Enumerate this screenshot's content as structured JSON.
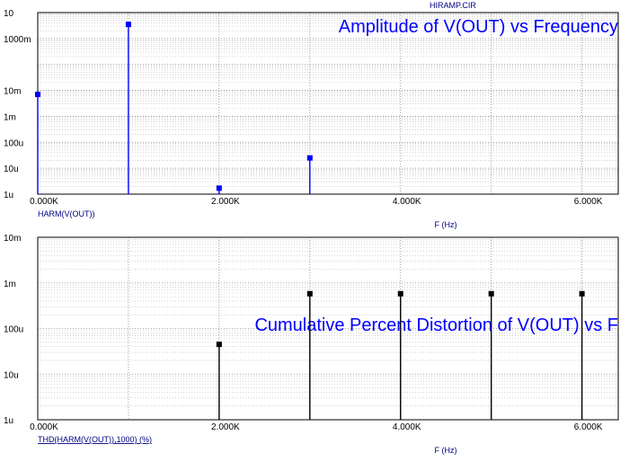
{
  "header": {
    "file_title": "HIRAMP.CIR"
  },
  "colors": {
    "series_top": "#0000ff",
    "series_bottom": "#000000",
    "grid": "#808080",
    "annotation": "#0000ff",
    "sublabel": "#000080"
  },
  "chart_data": [
    {
      "type": "stem",
      "title": "Amplitude of V(OUT) vs Frequency",
      "trace_label": "HARM(V(OUT))",
      "xlabel": "F (Hz)",
      "ylabel": "",
      "yscale": "log",
      "xlim": [
        0,
        6400
      ],
      "ylim": [
        1e-06,
        10
      ],
      "grid": true,
      "x_tick_values": [
        0,
        2000,
        4000,
        6000
      ],
      "x_tick_labels": [
        "0.000K",
        "2.000K",
        "4.000K",
        "6.000K"
      ],
      "y_tick_values": [
        10,
        1,
        0.01,
        0.001,
        0.0001,
        1e-05,
        1e-06
      ],
      "y_tick_labels": [
        "10",
        "1000m",
        "10m",
        "1m",
        "100u",
        "10u",
        "1u"
      ],
      "series": [
        {
          "x": [
            0,
            1000,
            2000,
            3000
          ],
          "y": [
            0.007,
            3.5,
            1.7e-06,
            2.5e-05
          ]
        }
      ]
    },
    {
      "type": "stem",
      "title": "Cumulative Percent Distortion of V(OUT) vs F",
      "trace_label": "THD(HARM(V(OUT)),1000) (%)",
      "xlabel": "F (Hz)",
      "ylabel": "",
      "yscale": "log",
      "xlim": [
        0,
        6400
      ],
      "ylim": [
        1e-06,
        0.01
      ],
      "grid": true,
      "x_tick_values": [
        0,
        2000,
        4000,
        6000
      ],
      "x_tick_labels": [
        "0.000K",
        "2.000K",
        "4.000K",
        "6.000K"
      ],
      "y_tick_values": [
        0.01,
        0.001,
        0.0001,
        1e-05,
        1e-06
      ],
      "y_tick_labels": [
        "10m",
        "1m",
        "100u",
        "10u",
        "1u"
      ],
      "series": [
        {
          "x": [
            2000,
            3000,
            4000,
            5000,
            6000
          ],
          "y": [
            4.5e-05,
            0.00058,
            0.00058,
            0.00058,
            0.00058
          ]
        }
      ]
    }
  ]
}
